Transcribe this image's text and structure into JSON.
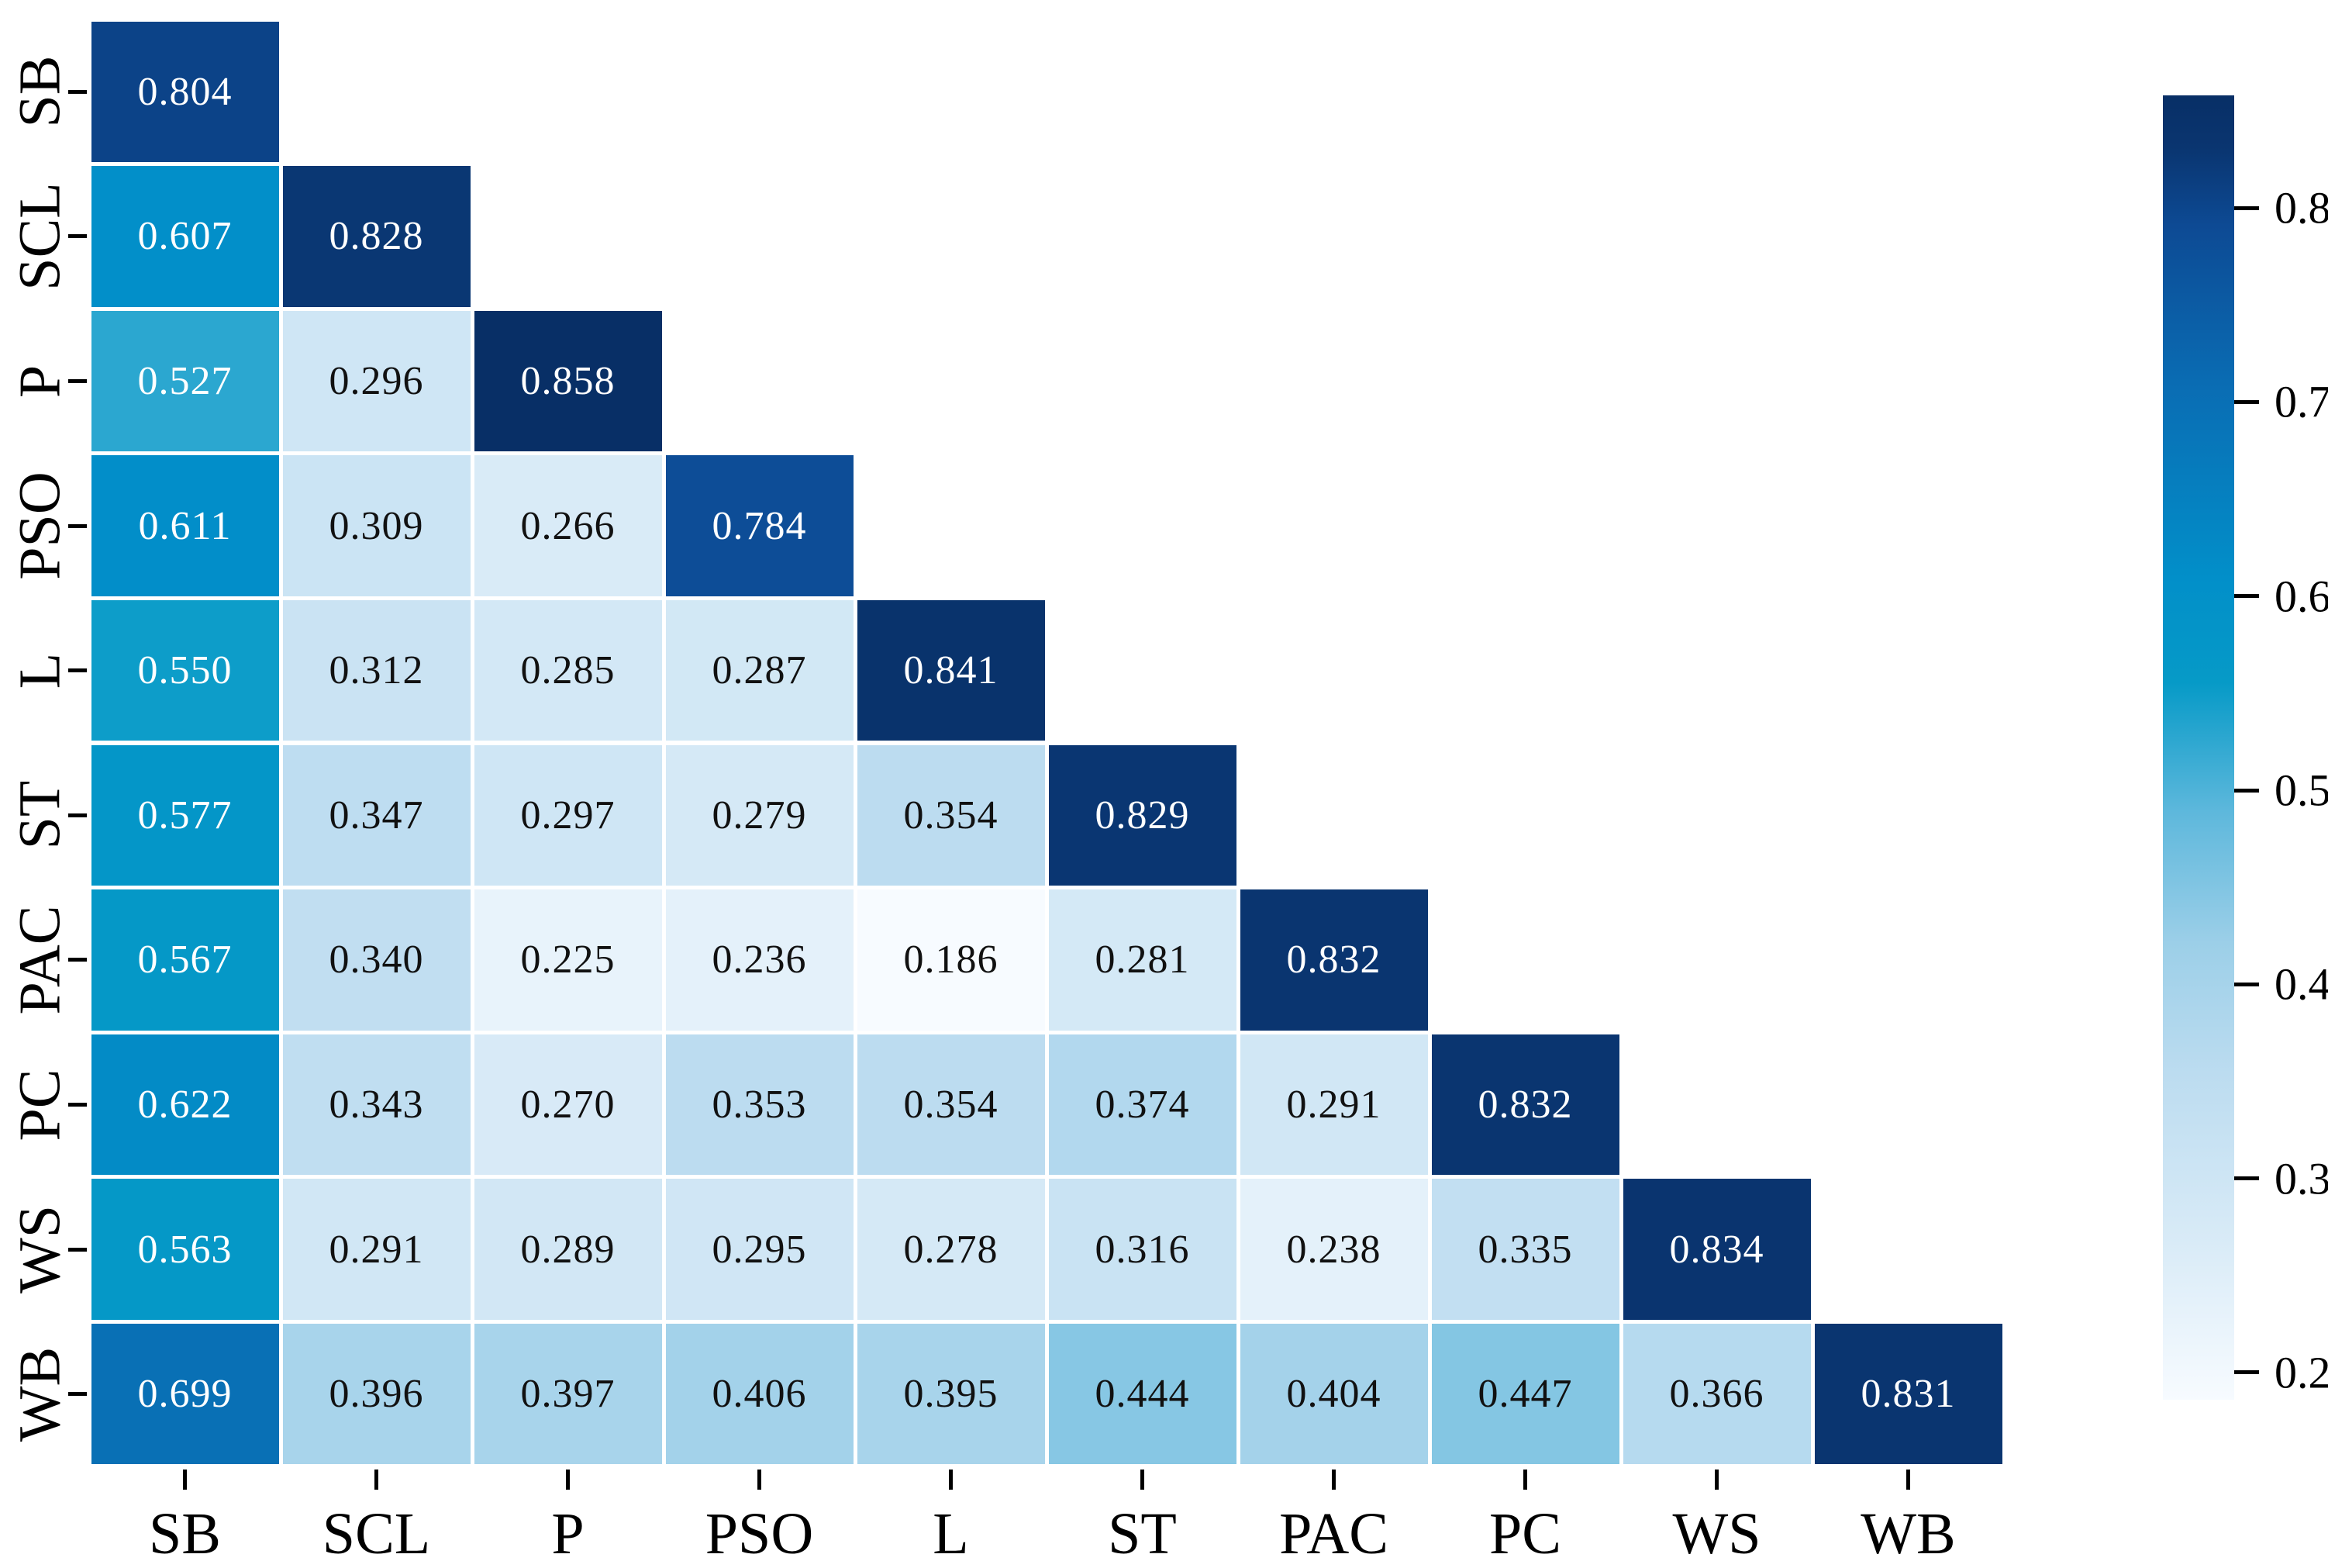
{
  "chart_data": {
    "type": "heatmap",
    "title": "",
    "description": "Lower-triangular correlation heatmap with diagonal",
    "categories": [
      "SB",
      "SCL",
      "P",
      "PSO",
      "L",
      "ST",
      "PAC",
      "PC",
      "WS",
      "WB"
    ],
    "rows": [
      [
        "0.804"
      ],
      [
        "0.607",
        "0.828"
      ],
      [
        "0.527",
        "0.296",
        "0.858"
      ],
      [
        "0.611",
        "0.309",
        "0.266",
        "0.784"
      ],
      [
        "0.550",
        "0.312",
        "0.285",
        "0.287",
        "0.841"
      ],
      [
        "0.577",
        "0.347",
        "0.297",
        "0.279",
        "0.354",
        "0.829"
      ],
      [
        "0.567",
        "0.340",
        "0.225",
        "0.236",
        "0.186",
        "0.281",
        "0.832"
      ],
      [
        "0.622",
        "0.343",
        "0.270",
        "0.353",
        "0.354",
        "0.374",
        "0.291",
        "0.832"
      ],
      [
        "0.563",
        "0.291",
        "0.289",
        "0.295",
        "0.278",
        "0.316",
        "0.238",
        "0.335",
        "0.834"
      ],
      [
        "0.699",
        "0.396",
        "0.397",
        "0.406",
        "0.395",
        "0.444",
        "0.404",
        "0.447",
        "0.366",
        "0.831"
      ]
    ],
    "grid": "white cell separators",
    "legend_position": "right colorbar",
    "colorbar": {
      "vmin": 0.186,
      "vmax": 0.858,
      "ticks": [
        "0.8",
        "0.7",
        "0.6",
        "0.5",
        "0.4",
        "0.3",
        "0.2"
      ]
    },
    "colormap": {
      "name": "blue-sequential",
      "stops": [
        {
          "t": 0.0,
          "hex": "#f7fbff"
        },
        {
          "t": 0.12,
          "hex": "#d9ebf7"
        },
        {
          "t": 0.25,
          "hex": "#bcdcf0"
        },
        {
          "t": 0.35,
          "hex": "#9ccfe8"
        },
        {
          "t": 0.45,
          "hex": "#5eb8dc"
        },
        {
          "t": 0.55,
          "hex": "#069ac7"
        },
        {
          "t": 0.63,
          "hex": "#028fc9"
        },
        {
          "t": 0.78,
          "hex": "#0a6cb3"
        },
        {
          "t": 0.9,
          "hex": "#0d4a94"
        },
        {
          "t": 0.96,
          "hex": "#0a3570"
        },
        {
          "t": 1.0,
          "hex": "#082f66"
        }
      ],
      "value_text_color_dark_cells": "#ffffff",
      "value_text_color_light_cells": "#111111"
    }
  }
}
